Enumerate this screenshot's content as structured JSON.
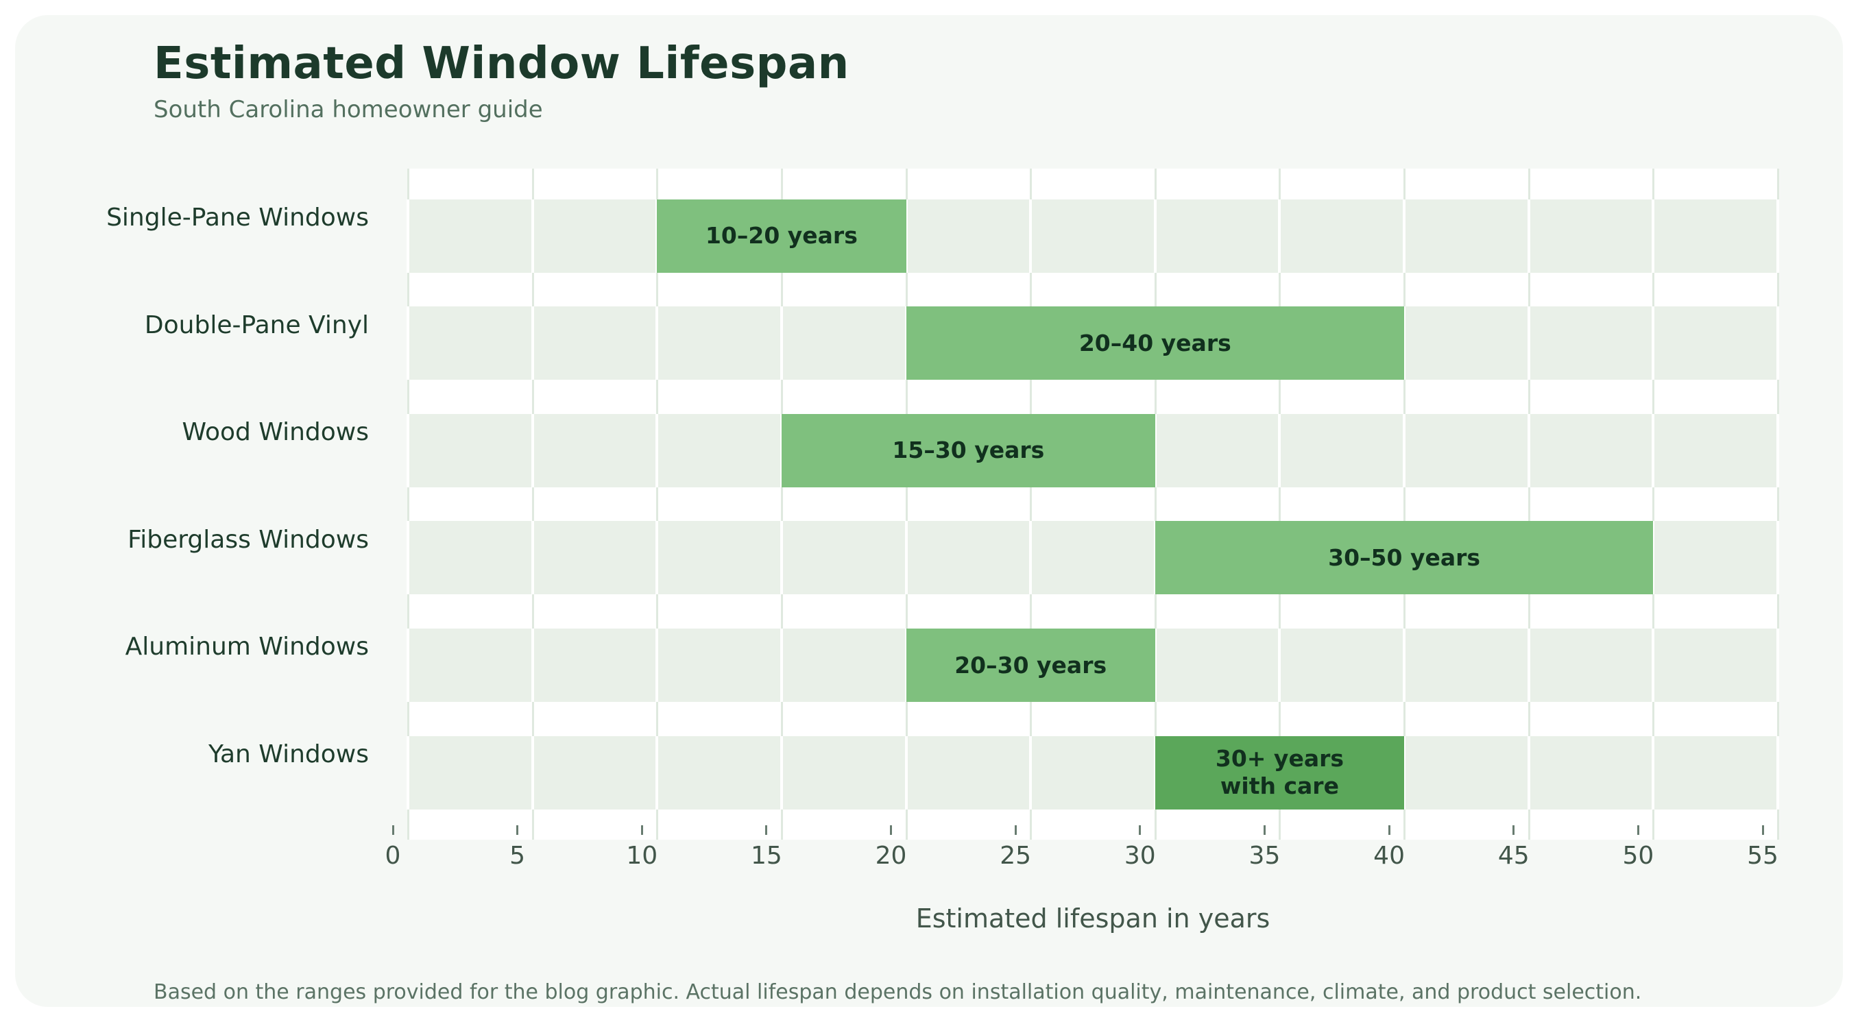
{
  "title": "Estimated Window Lifespan",
  "subtitle": "South Carolina homeowner guide",
  "footnote": "Based on the ranges provided for the blog graphic. Actual lifespan depends on installation quality, maintenance, climate, and product selection.",
  "colors": {
    "page": "#ffffff",
    "card": "#f5f8f5",
    "plot_background": "#ffffff",
    "track": "#e9f0e8",
    "grid_light": "#dfe9df",
    "grid_on_track": "#ffffff",
    "bar": "#7fc07e",
    "bar_emphasis": "#5ba75a",
    "title_text": "#1c3a2b",
    "subtitle_text": "#53705f",
    "row_label_text": "#1e3c2c",
    "bar_label_text": "#11301e",
    "tick_text": "#42564a",
    "footnote_text": "#5b7365"
  },
  "chart_data": {
    "type": "bar",
    "orientation": "horizontal",
    "title": "Estimated Window Lifespan",
    "subtitle": "South Carolina homeowner guide",
    "xlabel": "Estimated lifespan in years",
    "ylabel": "",
    "xlim": [
      0,
      55
    ],
    "xticks": [
      0,
      5,
      10,
      15,
      20,
      25,
      30,
      35,
      40,
      45,
      50,
      55
    ],
    "grid": true,
    "legend": false,
    "categories": [
      "Single-Pane Windows",
      "Double-Pane Vinyl",
      "Wood Windows",
      "Fiberglass Windows",
      "Aluminum Windows",
      "Yan Windows"
    ],
    "series": [
      {
        "category": "Single-Pane Windows",
        "start": 10,
        "end": 20,
        "label": "10–20 years",
        "emphasis": false
      },
      {
        "category": "Double-Pane Vinyl",
        "start": 20,
        "end": 40,
        "label": "20–40 years",
        "emphasis": false
      },
      {
        "category": "Wood Windows",
        "start": 15,
        "end": 30,
        "label": "15–30 years",
        "emphasis": false
      },
      {
        "category": "Fiberglass Windows",
        "start": 30,
        "end": 50,
        "label": "30–50 years",
        "emphasis": false
      },
      {
        "category": "Aluminum Windows",
        "start": 20,
        "end": 30,
        "label": "20–30 years",
        "emphasis": false
      },
      {
        "category": "Yan Windows",
        "start": 30,
        "end": 40,
        "label": "30+ years\nwith care",
        "emphasis": true
      }
    ]
  }
}
